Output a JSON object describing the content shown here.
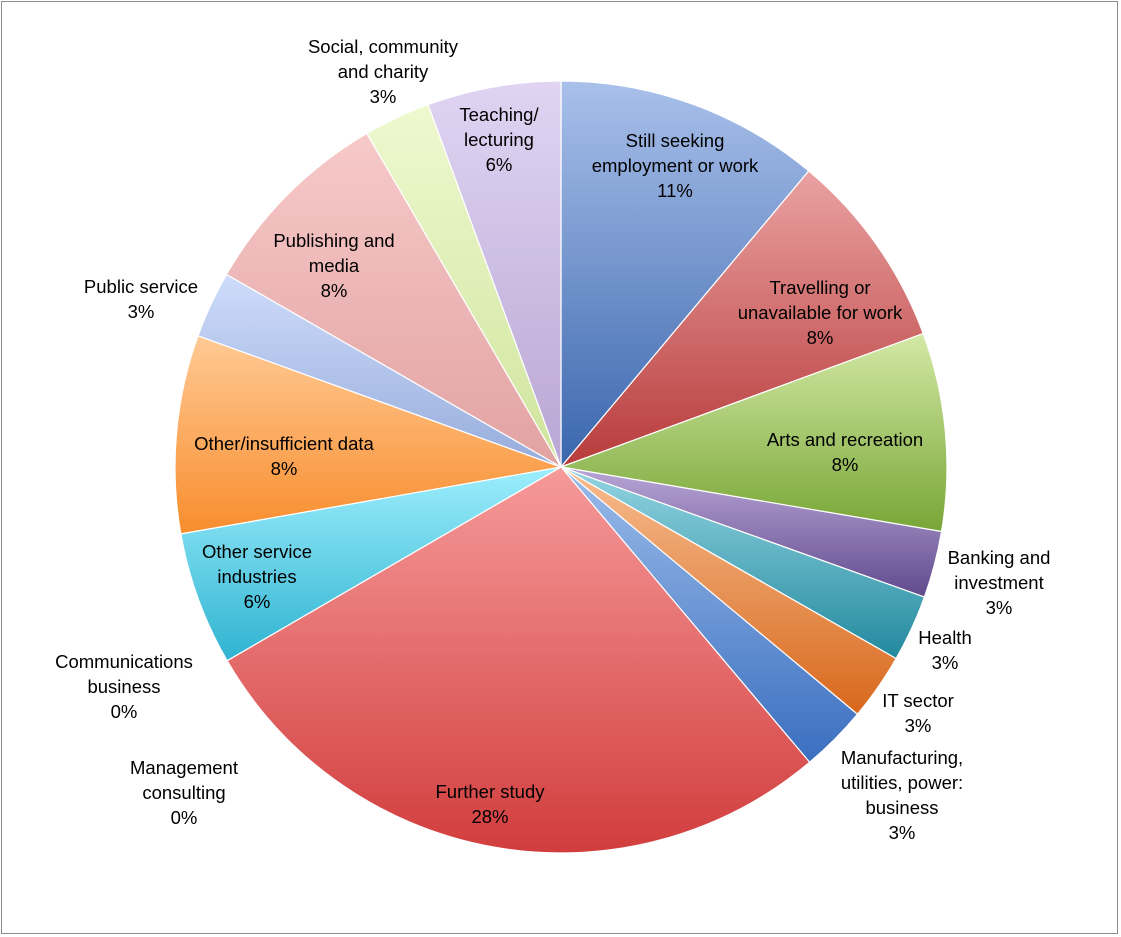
{
  "chart_data": {
    "type": "pie",
    "title": "",
    "start_angle_deg": 0,
    "direction": "clockwise",
    "slices": [
      {
        "label": "Still seeking employment or work",
        "label_lines": [
          "Still seeking",
          "employment or work"
        ],
        "value_label": "11%",
        "value": 11.1,
        "color": "#5b84c8",
        "light": "#a9c0ea",
        "dark": "#3a66ad"
      },
      {
        "label": "Travelling or unavailable for work",
        "label_lines": [
          "Travelling or",
          "unavailable for work"
        ],
        "value_label": "8%",
        "value": 8.3,
        "color": "#d46464",
        "light": "#eaa2a2",
        "dark": "#b83b3b"
      },
      {
        "label": "Arts and recreation",
        "label_lines": [
          "Arts and recreation"
        ],
        "value_label": "8%",
        "value": 8.3,
        "color": "#a9cc6c",
        "light": "#d3e9a6",
        "dark": "#78a636"
      },
      {
        "label": "Banking and investment",
        "label_lines": [
          "Banking and",
          "investment"
        ],
        "value_label": "3%",
        "value": 2.8,
        "color": "#8a71b0",
        "light": "#b9a6d6",
        "dark": "#604a8e"
      },
      {
        "label": "Health",
        "label_lines": [
          "Health"
        ],
        "value_label": "3%",
        "value": 2.8,
        "color": "#4fb2c6",
        "light": "#94d5e2",
        "dark": "#22899e"
      },
      {
        "label": "IT sector",
        "label_lines": [
          "IT sector"
        ],
        "value_label": "3%",
        "value": 2.8,
        "color": "#ef9148",
        "light": "#f7bd90",
        "dark": "#d8681c"
      },
      {
        "label": "Manufacturing, utilities, power: business",
        "label_lines": [
          "Manufacturing,",
          "utilities, power:",
          "business"
        ],
        "value_label": "3%",
        "value": 2.8,
        "color": "#5d8ed4",
        "light": "#9bbce9",
        "dark": "#3a6ec0"
      },
      {
        "label": "Management consulting",
        "label_lines": [
          "Management",
          "consulting"
        ],
        "value_label": "0%",
        "value": 0,
        "color": "#888888",
        "light": "#bbbbbb",
        "dark": "#666666"
      },
      {
        "label": "Further study",
        "label_lines": [
          "Further study"
        ],
        "value_label": "28%",
        "value": 27.8,
        "color": "#e56b6b",
        "light": "#f69a9a",
        "dark": "#d23d3d"
      },
      {
        "label": "Communications business",
        "label_lines": [
          "Communications",
          "business"
        ],
        "value_label": "0%",
        "value": 0,
        "color": "#888888",
        "light": "#bbbbbb",
        "dark": "#666666"
      },
      {
        "label": "Other service industries",
        "label_lines": [
          "Other service",
          "industries"
        ],
        "value_label": "6%",
        "value": 5.6,
        "color": "#5fd0e8",
        "light": "#9deefc",
        "dark": "#2fb3d1"
      },
      {
        "label": "Other/insufficient data",
        "label_lines": [
          "Other/insufficient data"
        ],
        "value_label": "8%",
        "value": 8.3,
        "color": "#ffa85c",
        "light": "#ffca95",
        "dark": "#f88d2d"
      },
      {
        "label": "Public service",
        "label_lines": [
          "Public service"
        ],
        "value_label": "3%",
        "value": 2.8,
        "color": "#b6c6ea",
        "light": "#cfdcfb",
        "dark": "#96acdb"
      },
      {
        "label": "Publishing and media",
        "label_lines": [
          "Publishing and",
          "media"
        ],
        "value_label": "8%",
        "value": 8.3,
        "color": "#efb3b3",
        "light": "#f7c9c9",
        "dark": "#e2a2a2"
      },
      {
        "label": "Social, community and charity",
        "label_lines": [
          "Social, community",
          "and charity"
        ],
        "value_label": "3%",
        "value": 2.8,
        "color": "#e0f2b8",
        "light": "#eef9cf",
        "dark": "#cfe49e"
      },
      {
        "label": "Teaching/ lecturing",
        "label_lines": [
          "Teaching/",
          "lecturing"
        ],
        "value_label": "6%",
        "value": 5.6,
        "color": "#ccbbe2",
        "light": "#e0d4f2",
        "dark": "#b9a6d4"
      }
    ]
  }
}
